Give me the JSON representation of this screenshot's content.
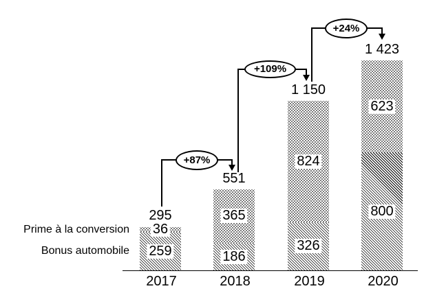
{
  "chart_data": {
    "type": "bar",
    "stacked": true,
    "title": "",
    "categories": [
      "2017",
      "2018",
      "2019",
      "2020"
    ],
    "series": [
      {
        "name": "Prime à la conversion",
        "pattern": "dots",
        "stack_position": "top",
        "values": [
          36,
          365,
          824,
          623
        ],
        "labels": [
          "36",
          "365",
          "824",
          "623"
        ]
      },
      {
        "name": "Bonus automobile",
        "pattern": "diagonal-hatch",
        "stack_position": "bottom",
        "values": [
          259,
          186,
          326,
          800
        ],
        "labels": [
          "259",
          "186",
          "326",
          "800"
        ]
      }
    ],
    "totals": [
      295,
      551,
      1150,
      1423
    ],
    "total_labels": [
      "295",
      "551",
      "1 150",
      "1 423"
    ],
    "annotations": [
      {
        "label": "+87%",
        "from_year": "2017",
        "to_year": "2018"
      },
      {
        "label": "+109%",
        "from_year": "2018",
        "to_year": "2019"
      },
      {
        "label": "+24%",
        "from_year": "2019",
        "to_year": "2020"
      }
    ],
    "ylim": [
      0,
      1500
    ],
    "grid": false,
    "legend_position": "left-of-2017-bar"
  },
  "colors": {
    "foreground": "#000000",
    "background": "#ffffff"
  }
}
